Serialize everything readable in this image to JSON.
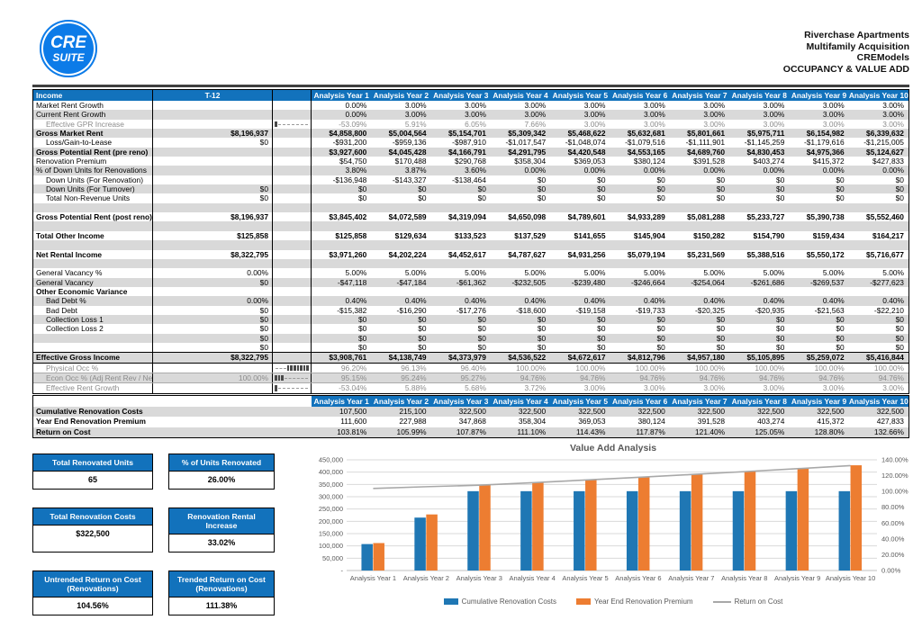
{
  "colors": {
    "accent": "#1272BC",
    "logo_blue": "#0C7BE8",
    "zebra": "#D9D9D9",
    "bar_blue": "#1F77B4",
    "bar_orange": "#ED7D31",
    "line_gray": "#A8A8A8"
  },
  "header": {
    "logo_line1": "CRE",
    "logo_line2": "SUITE",
    "title_lines": [
      "Riverchase Apartments",
      "Multifamily Acquisition",
      "CREModels",
      "OCCUPANCY & VALUE ADD"
    ]
  },
  "income_table": {
    "corner_label": "Income",
    "t12_label": "T-12",
    "year_headers": [
      "Analysis Year 1",
      "Analysis Year 2",
      "Analysis Year 3",
      "Analysis Year 4",
      "Analysis Year 5",
      "Analysis Year 6",
      "Analysis Year 7",
      "Analysis Year 8",
      "Analysis Year 9",
      "Analysis Year 10"
    ],
    "rows": [
      {
        "label": "Market Rent Growth",
        "t12": "",
        "style": "",
        "values": [
          "0.00%",
          "3.00%",
          "3.00%",
          "3.00%",
          "3.00%",
          "3.00%",
          "3.00%",
          "3.00%",
          "3.00%",
          "3.00%"
        ]
      },
      {
        "label": "Current Rent Growth",
        "t12": "",
        "style": "sh",
        "values": [
          "0.00%",
          "3.00%",
          "3.00%",
          "3.00%",
          "3.00%",
          "3.00%",
          "3.00%",
          "3.00%",
          "3.00%",
          "3.00%"
        ]
      },
      {
        "label": "Effective GPR Increase",
        "t12": "",
        "style": "s i",
        "spark": {
          "bars": 1,
          "side": "left"
        },
        "values": [
          "-53.09%",
          "5.91%",
          "6.05%",
          "7.66%",
          "3.00%",
          "3.00%",
          "3.00%",
          "3.00%",
          "3.00%",
          "3.00%"
        ]
      },
      {
        "label": "Gross Market Rent",
        "t12": "$8,196,937",
        "style": "b sh",
        "values": [
          "$4,858,800",
          "$5,004,564",
          "$5,154,701",
          "$5,309,342",
          "$5,468,622",
          "$5,632,681",
          "$5,801,661",
          "$5,975,711",
          "$6,154,982",
          "$6,339,632"
        ]
      },
      {
        "label": "Loss/Gain-to-Lease",
        "t12": "$0",
        "style": "i",
        "values": [
          "-$931,200",
          "-$959,136",
          "-$987,910",
          "-$1,017,547",
          "-$1,048,074",
          "-$1,079,516",
          "-$1,111,901",
          "-$1,145,259",
          "-$1,179,616",
          "-$1,215,005"
        ]
      },
      {
        "label": "Gross Potential Rent (pre reno)",
        "t12": "",
        "style": "b sh",
        "values": [
          "$3,927,600",
          "$4,045,428",
          "$4,166,791",
          "$4,291,795",
          "$4,420,548",
          "$4,553,165",
          "$4,689,760",
          "$4,830,453",
          "$4,975,366",
          "$5,124,627"
        ]
      },
      {
        "label": "Renovation Premium",
        "t12": "",
        "style": "",
        "values": [
          "$54,750",
          "$170,488",
          "$290,768",
          "$358,304",
          "$369,053",
          "$380,124",
          "$391,528",
          "$403,274",
          "$415,372",
          "$427,833"
        ]
      },
      {
        "label": "% of Down Units for Renovations",
        "t12": "",
        "style": "sh",
        "values": [
          "3.80%",
          "3.87%",
          "3.60%",
          "0.00%",
          "0.00%",
          "0.00%",
          "0.00%",
          "0.00%",
          "0.00%",
          "0.00%"
        ]
      },
      {
        "label": "Down Units (For Renovation)",
        "t12": "",
        "style": "i",
        "values": [
          "-$136,948",
          "-$143,327",
          "-$138,464",
          "$0",
          "$0",
          "$0",
          "$0",
          "$0",
          "$0",
          "$0"
        ]
      },
      {
        "label": "Down Units (For Turnover)",
        "t12": "$0",
        "style": "i sh",
        "values": [
          "$0",
          "$0",
          "$0",
          "$0",
          "$0",
          "$0",
          "$0",
          "$0",
          "$0",
          "$0"
        ]
      },
      {
        "label": "Total Non-Revenue Units",
        "t12": "$0",
        "style": "i",
        "values": [
          "$0",
          "$0",
          "$0",
          "$0",
          "$0",
          "$0",
          "$0",
          "$0",
          "$0",
          "$0"
        ]
      },
      {
        "label": "",
        "t12": "",
        "style": "sh",
        "values": [
          "",
          "",
          "",
          "",
          "",
          "",
          "",
          "",
          "",
          ""
        ]
      },
      {
        "label": "Gross Potential Rent (post reno)",
        "t12": "$8,196,937",
        "style": "b",
        "values": [
          "$3,845,402",
          "$4,072,589",
          "$4,319,094",
          "$4,650,098",
          "$4,789,601",
          "$4,933,289",
          "$5,081,288",
          "$5,233,727",
          "$5,390,738",
          "$5,552,460"
        ]
      },
      {
        "label": "",
        "t12": "",
        "style": "sh",
        "values": [
          "",
          "",
          "",
          "",
          "",
          "",
          "",
          "",
          "",
          ""
        ]
      },
      {
        "label": "Total Other Income",
        "t12": "$125,858",
        "style": "b",
        "values": [
          "$125,858",
          "$129,634",
          "$133,523",
          "$137,529",
          "$141,655",
          "$145,904",
          "$150,282",
          "$154,790",
          "$159,434",
          "$164,217"
        ]
      },
      {
        "label": "",
        "t12": "",
        "style": "sh",
        "values": [
          "",
          "",
          "",
          "",
          "",
          "",
          "",
          "",
          "",
          ""
        ]
      },
      {
        "label": "Net Rental Income",
        "t12": "$8,322,795",
        "style": "b",
        "values": [
          "$3,971,260",
          "$4,202,224",
          "$4,452,617",
          "$4,787,627",
          "$4,931,256",
          "$5,079,194",
          "$5,231,569",
          "$5,388,516",
          "$5,550,172",
          "$5,716,677"
        ]
      },
      {
        "label": "",
        "t12": "",
        "style": "sh",
        "values": [
          "",
          "",
          "",
          "",
          "",
          "",
          "",
          "",
          "",
          ""
        ]
      },
      {
        "label": "General Vacancy %",
        "t12": "0.00%",
        "style": "",
        "values": [
          "5.00%",
          "5.00%",
          "5.00%",
          "5.00%",
          "5.00%",
          "5.00%",
          "5.00%",
          "5.00%",
          "5.00%",
          "5.00%"
        ]
      },
      {
        "label": "General Vacancy",
        "t12": "$0",
        "style": "sh",
        "values": [
          "-$47,118",
          "-$47,184",
          "-$61,362",
          "-$232,505",
          "-$239,480",
          "-$246,664",
          "-$254,064",
          "-$261,686",
          "-$269,537",
          "-$277,623"
        ]
      },
      {
        "label": "Other Economic Variance",
        "t12": "",
        "style": "b",
        "values": [
          "",
          "",
          "",
          "",
          "",
          "",
          "",
          "",
          "",
          ""
        ]
      },
      {
        "label": "Bad Debt %",
        "t12": "0.00%",
        "style": "i sh",
        "values": [
          "0.40%",
          "0.40%",
          "0.40%",
          "0.40%",
          "0.40%",
          "0.40%",
          "0.40%",
          "0.40%",
          "0.40%",
          "0.40%"
        ]
      },
      {
        "label": "Bad Debt",
        "t12": "$0",
        "style": "i",
        "values": [
          "-$15,382",
          "-$16,290",
          "-$17,276",
          "-$18,600",
          "-$19,158",
          "-$19,733",
          "-$20,325",
          "-$20,935",
          "-$21,563",
          "-$22,210"
        ]
      },
      {
        "label": "Collection Loss 1",
        "t12": "$0",
        "style": "i sh",
        "values": [
          "$0",
          "$0",
          "$0",
          "$0",
          "$0",
          "$0",
          "$0",
          "$0",
          "$0",
          "$0"
        ]
      },
      {
        "label": "Collection Loss 2",
        "t12": "$0",
        "style": "i",
        "values": [
          "$0",
          "$0",
          "$0",
          "$0",
          "$0",
          "$0",
          "$0",
          "$0",
          "$0",
          "$0"
        ]
      },
      {
        "label": "",
        "t12": "$0",
        "style": "sh",
        "values": [
          "$0",
          "$0",
          "$0",
          "$0",
          "$0",
          "$0",
          "$0",
          "$0",
          "$0",
          "$0"
        ]
      },
      {
        "label": "",
        "t12": "$0",
        "style": "",
        "values": [
          "$0",
          "$0",
          "$0",
          "$0",
          "$0",
          "$0",
          "$0",
          "$0",
          "$0",
          "$0"
        ]
      },
      {
        "label": "Effective Gross Income",
        "t12": "$8,322,795",
        "style": "b sh bt bb",
        "values": [
          "$3,908,761",
          "$4,138,749",
          "$4,373,979",
          "$4,536,522",
          "$4,672,617",
          "$4,812,796",
          "$4,957,180",
          "$5,105,895",
          "$5,259,072",
          "$5,416,844"
        ]
      },
      {
        "label": "Physical Occ %",
        "t12": "",
        "style": "s i",
        "spark": {
          "bars": 7,
          "side": "right"
        },
        "values": [
          "96.20%",
          "96.13%",
          "96.40%",
          "100.00%",
          "100.00%",
          "100.00%",
          "100.00%",
          "100.00%",
          "100.00%",
          "100.00%"
        ]
      },
      {
        "label": "Econ Occ % (Adj Rent Rev / Net Rental Income)",
        "t12": "100.00%",
        "style": "s i sh tl",
        "spark": {
          "bars": 3,
          "side": "left"
        },
        "values": [
          "95.15%",
          "95.24%",
          "95.27%",
          "94.76%",
          "94.76%",
          "94.76%",
          "94.76%",
          "94.76%",
          "94.76%",
          "94.76%"
        ]
      },
      {
        "label": "Effective Rent Growth",
        "t12": "",
        "style": "s i tl",
        "spark": {
          "bars": 1,
          "side": "left"
        },
        "values": [
          "-53.04%",
          "5.88%",
          "5.68%",
          "3.72%",
          "3.00%",
          "3.00%",
          "3.00%",
          "3.00%",
          "3.00%",
          "3.00%"
        ]
      }
    ]
  },
  "renovation_table": {
    "year_headers": [
      "Analysis Year 1",
      "Analysis Year 2",
      "Analysis Year 3",
      "Analysis Year 4",
      "Analysis Year 5",
      "Analysis Year 6",
      "Analysis Year 7",
      "Analysis Year 8",
      "Analysis Year 9",
      "Analysis Year 10"
    ],
    "rows": [
      {
        "label": "Cumulative Renovation Costs",
        "style": "sh",
        "values": [
          "107,500",
          "215,100",
          "322,500",
          "322,500",
          "322,500",
          "322,500",
          "322,500",
          "322,500",
          "322,500",
          "322,500"
        ]
      },
      {
        "label": "Year End Renovation Premium",
        "style": "",
        "values": [
          "111,600",
          "227,988",
          "347,868",
          "358,304",
          "369,053",
          "380,124",
          "391,528",
          "403,274",
          "415,372",
          "427,833"
        ]
      },
      {
        "label": "Return on Cost",
        "style": "sh",
        "values": [
          "103.81%",
          "105.99%",
          "107.87%",
          "111.10%",
          "114.43%",
          "117.87%",
          "121.40%",
          "125.05%",
          "128.80%",
          "132.66%"
        ]
      }
    ]
  },
  "summary_boxes": [
    {
      "title": "Total Renovated Units",
      "value": "65"
    },
    {
      "title": "% of Units Renovated",
      "value": "26.00%"
    },
    {
      "title": "Total Renovation Costs",
      "value": "$322,500"
    },
    {
      "title": "Renovation Rental Increase",
      "value": "33.02%"
    },
    {
      "title": "Untrended Return on Cost (Renovations)",
      "value": "104.56%"
    },
    {
      "title": "Trended Return on Cost (Renovations)",
      "value": "111.38%"
    }
  ],
  "chart_data": {
    "type": "bar",
    "title": "Value Add Analysis",
    "categories": [
      "Analysis Year 1",
      "Analysis Year 2",
      "Analysis Year 3",
      "Analysis Year 4",
      "Analysis Year 5",
      "Analysis Year 6",
      "Analysis Year 7",
      "Analysis Year 8",
      "Analysis Year 9",
      "Analysis Year 10"
    ],
    "series": [
      {
        "name": "Cumulative Renovation Costs",
        "type": "bar",
        "axis": "left",
        "color": "#1F77B4",
        "values": [
          107500,
          215100,
          322500,
          322500,
          322500,
          322500,
          322500,
          322500,
          322500,
          322500
        ]
      },
      {
        "name": "Year End Renovation Premium",
        "type": "bar",
        "axis": "left",
        "color": "#ED7D31",
        "values": [
          111600,
          227988,
          347868,
          358304,
          369053,
          380124,
          391528,
          403274,
          415372,
          427833
        ]
      },
      {
        "name": "Return on Cost",
        "type": "line",
        "axis": "right",
        "color": "#A8A8A8",
        "values": [
          103.81,
          105.99,
          107.87,
          111.1,
          114.43,
          117.87,
          121.4,
          125.05,
          128.8,
          132.66
        ]
      }
    ],
    "left_axis": {
      "min": 0,
      "max": 450000,
      "step": 50000,
      "labels_top_to_bottom": [
        "450,000",
        "400,000",
        "350,000",
        "300,000",
        "250,000",
        "200,000",
        "150,000",
        "100,000",
        "50,000",
        "-"
      ]
    },
    "right_axis": {
      "min": 0,
      "max": 140,
      "step": 20,
      "labels_top_to_bottom": [
        "140.00%",
        "120.00%",
        "100.00%",
        "80.00%",
        "60.00%",
        "40.00%",
        "20.00%",
        "0.00%"
      ]
    },
    "grid": true,
    "legend_position": "bottom"
  }
}
